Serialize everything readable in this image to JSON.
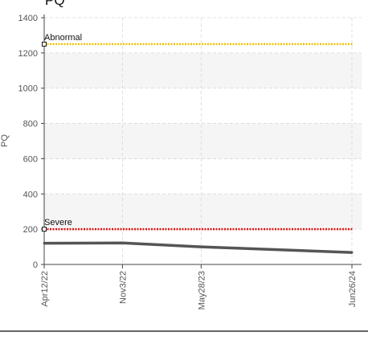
{
  "chart_data": {
    "type": "line",
    "title": "PQ",
    "ylabel": "PQ",
    "xlabel": "",
    "ylim": [
      0,
      1400
    ],
    "yticks": [
      0,
      200,
      400,
      600,
      800,
      1000,
      1200,
      1400
    ],
    "x_tick_labels": [
      "Apr12/22",
      "Nov3/22",
      "May28/23",
      "Jun26/24"
    ],
    "x_tick_dates": [
      "2022-04-12",
      "2022-11-03",
      "2023-05-28",
      "2024-06-26"
    ],
    "series": [
      {
        "color": "#555555",
        "points": [
          {
            "x": "2022-04-12",
            "y": 120
          },
          {
            "x": "2022-11-03",
            "y": 122
          },
          {
            "x": "2023-05-28",
            "y": 100
          },
          {
            "x": "2024-06-26",
            "y": 68
          }
        ]
      }
    ],
    "reference_lines": [
      {
        "label": "Abnormal",
        "y": 1250,
        "color": "#f0c000",
        "style": "dotted"
      },
      {
        "label": "Severe",
        "y": 200,
        "color": "#e01010",
        "style": "dotted"
      }
    ],
    "grid": true,
    "band_color": "#f5f5f5"
  }
}
